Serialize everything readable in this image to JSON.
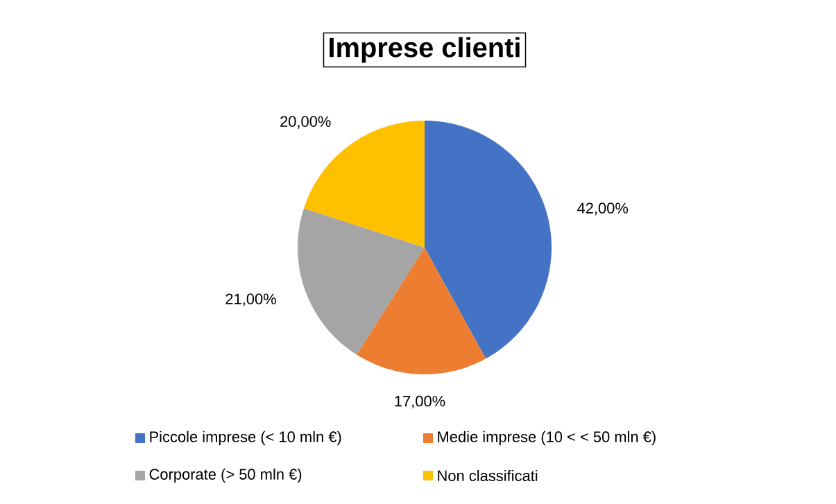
{
  "chart_data": {
    "type": "pie",
    "title": "Imprese clienti",
    "categories": [
      "Piccole imprese (< 10 mln €)",
      "Medie imprese (10 < < 50 mln €)",
      "Corporate (> 50 mln €)",
      "Non classificati"
    ],
    "values": [
      42,
      17,
      21,
      20
    ],
    "value_labels": [
      "42,00%",
      "17,00%",
      "21,00%",
      "20,00%"
    ],
    "colors": [
      "#4472c4",
      "#ed7d31",
      "#a5a5a5",
      "#ffc000"
    ],
    "legend": "bottom"
  }
}
